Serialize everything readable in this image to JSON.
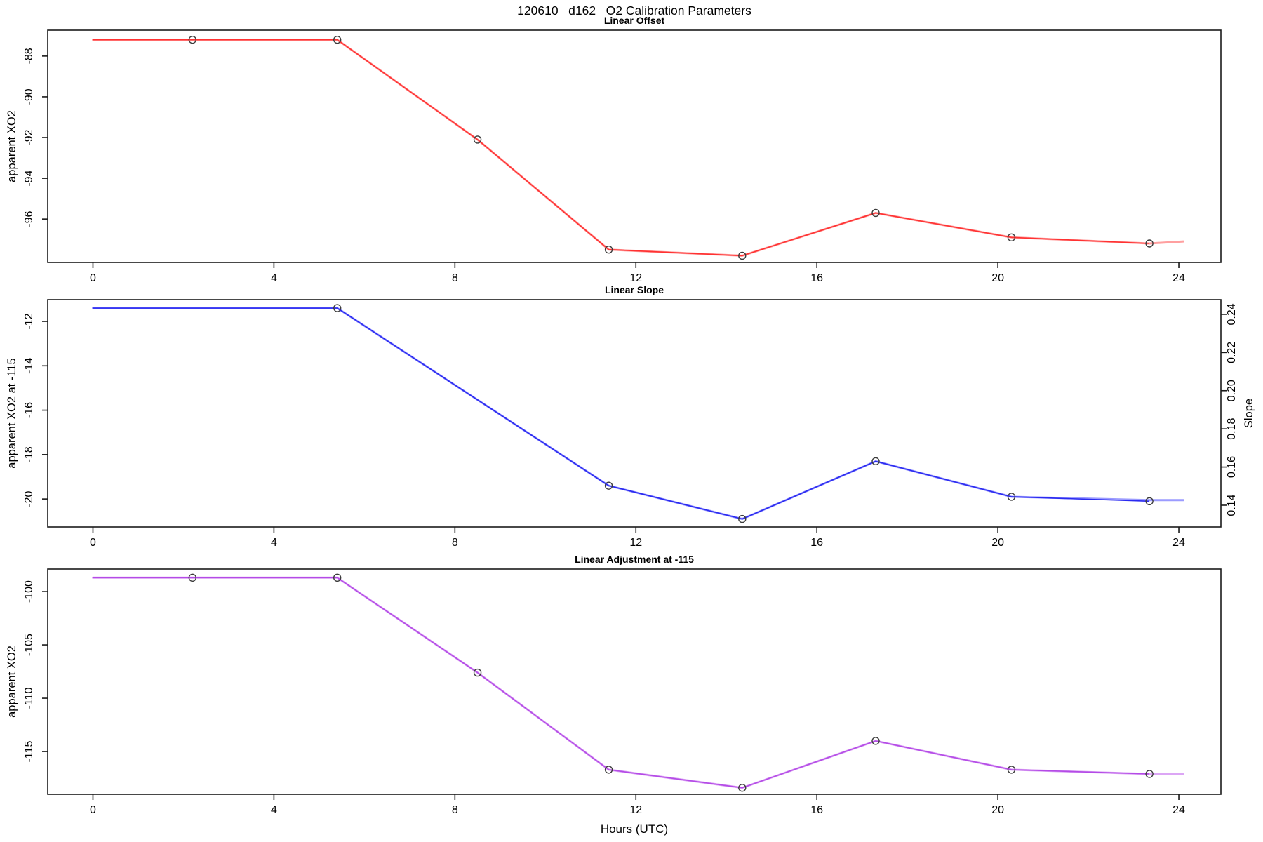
{
  "title": "120610   d162   O2 Calibration Parameters",
  "xlabel": "Hours (UTC)",
  "chart_data": [
    {
      "type": "line",
      "title": "Linear Offset",
      "ylabel": "apparent XO2",
      "yticks": [
        -88,
        -90,
        -92,
        -94,
        -96
      ],
      "ytick_labels": [
        "-88",
        "-90",
        "-92",
        "-94",
        "-96"
      ],
      "ylim": [
        -98.13,
        -86.73
      ],
      "xlim": [
        -1.0,
        24.93
      ],
      "xticks": [
        0,
        4,
        8,
        12,
        16,
        20,
        24
      ],
      "xtick_labels": [
        "0",
        "4",
        "8",
        "12",
        "16",
        "20",
        "24"
      ],
      "grid": false,
      "line_color": "#FF3232",
      "light_line_color": "#FFA0A0",
      "marker_color": "#3C3C3C",
      "points": {
        "x": [
          2.2,
          5.4,
          8.5,
          11.4,
          14.35,
          17.3,
          20.3,
          23.35
        ],
        "y": [
          -87.2,
          -87.2,
          -92.1,
          -97.5,
          -97.8,
          -95.7,
          -96.9,
          -97.2
        ]
      },
      "line": {
        "x": [
          0,
          2.2,
          5.4,
          8.5,
          11.4,
          14.35,
          17.3,
          20.3,
          23.35
        ],
        "y": [
          -87.2,
          -87.2,
          -87.2,
          -92.1,
          -97.5,
          -97.8,
          -95.7,
          -96.9,
          -97.2
        ]
      },
      "light_line": {
        "x": [
          0,
          2.2,
          5.4,
          8.5,
          11.4,
          14.35,
          17.3,
          20.3,
          23.35,
          24.1
        ],
        "y": [
          -87.2,
          -87.2,
          -87.2,
          -92.1,
          -97.5,
          -97.8,
          -95.7,
          -96.9,
          -97.2,
          -97.1
        ]
      }
    },
    {
      "type": "line",
      "title": "Linear Slope",
      "ylabel": "apparent XO2 at -115",
      "yticks": [
        -12,
        -14,
        -16,
        -18,
        -20
      ],
      "ytick_labels": [
        "-12",
        "-14",
        "-16",
        "-18",
        "-20"
      ],
      "ylim": [
        -21.26,
        -11.02
      ],
      "xlim": [
        -1.0,
        24.93
      ],
      "xticks": [
        0,
        4,
        8,
        12,
        16,
        20,
        24
      ],
      "xtick_labels": [
        "0",
        "4",
        "8",
        "12",
        "16",
        "20",
        "24"
      ],
      "grid": false,
      "line_color": "#2A2AF0",
      "light_line_color": "#9B9BFF",
      "marker_color": "#3C3C3C",
      "right_axis": {
        "label": "Slope",
        "ticks": [
          0.14,
          0.16,
          0.18,
          0.2,
          0.22,
          0.24
        ],
        "tick_labels": [
          "0.14",
          "0.16",
          "0.18",
          "0.20",
          "0.22",
          "0.24"
        ],
        "lim": [
          0.1286,
          0.2477
        ]
      },
      "points": {
        "x": [
          5.4,
          11.4,
          14.35,
          17.3,
          20.3,
          23.35
        ],
        "y": [
          -11.4,
          -19.4,
          -20.9,
          -18.3,
          -19.9,
          -20.1
        ]
      },
      "points_right_axis_values": [
        0.243,
        0.151,
        0.133,
        0.164,
        0.144,
        0.143
      ],
      "line": {
        "x": [
          0,
          5.4,
          11.4,
          14.35,
          17.3,
          20.3,
          23.35
        ],
        "y": [
          -11.4,
          -11.4,
          -19.4,
          -20.9,
          -18.3,
          -19.9,
          -20.1
        ]
      },
      "light_line": {
        "x": [
          0,
          5.4,
          11.4,
          14.35,
          17.3,
          20.3,
          23.35,
          24.1
        ],
        "y": [
          -11.4,
          -11.4,
          -19.4,
          -20.9,
          -18.3,
          -19.9,
          -20.05,
          -20.05
        ]
      }
    },
    {
      "type": "line",
      "title": "Linear Adjustment at -115",
      "ylabel": "apparent XO2",
      "yticks": [
        -100,
        -105,
        -110,
        -115
      ],
      "ytick_labels": [
        "-100",
        "-105",
        "-110",
        "-115"
      ],
      "ylim": [
        -119.01,
        -97.89
      ],
      "xlim": [
        -1.0,
        24.93
      ],
      "xticks": [
        0,
        4,
        8,
        12,
        16,
        20,
        24
      ],
      "xtick_labels": [
        "0",
        "4",
        "8",
        "12",
        "16",
        "20",
        "24"
      ],
      "grid": false,
      "line_color": "#B44BE6",
      "light_line_color": "#DCA6F5",
      "marker_color": "#3C3C3C",
      "points": {
        "x": [
          2.2,
          5.4,
          8.5,
          11.4,
          14.35,
          17.3,
          20.3,
          23.35
        ],
        "y": [
          -98.7,
          -98.7,
          -107.6,
          -116.7,
          -118.4,
          -114.0,
          -116.7,
          -117.1
        ]
      },
      "line": {
        "x": [
          0,
          2.2,
          5.4,
          8.5,
          11.4,
          14.35,
          17.3,
          20.3,
          23.35
        ],
        "y": [
          -98.7,
          -98.7,
          -98.7,
          -107.6,
          -116.7,
          -118.4,
          -114.0,
          -116.7,
          -117.1
        ]
      },
      "light_line": {
        "x": [
          0,
          2.2,
          5.4,
          8.5,
          11.4,
          14.35,
          17.3,
          20.3,
          23.35,
          24.1
        ],
        "y": [
          -98.7,
          -98.7,
          -98.7,
          -107.6,
          -116.7,
          -118.4,
          -114.0,
          -116.7,
          -117.1,
          -117.1
        ]
      }
    }
  ]
}
